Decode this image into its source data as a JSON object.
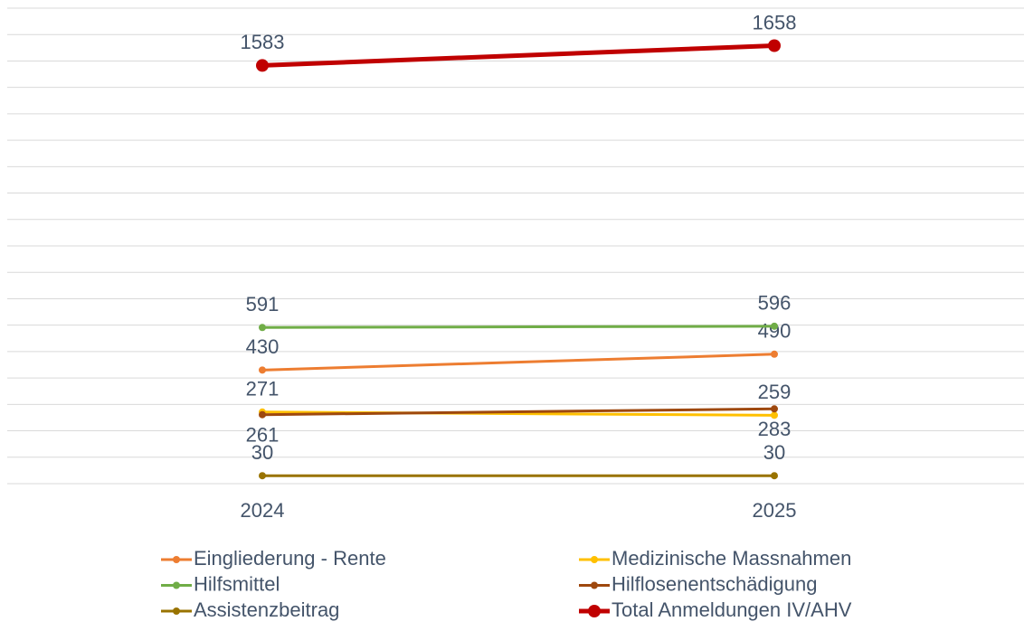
{
  "chart_data": {
    "type": "line",
    "categories": [
      "2024",
      "2025"
    ],
    "series": [
      {
        "name": "Eingliederung - Rente",
        "color": "#ED7D31",
        "values": [
          430,
          490
        ]
      },
      {
        "name": "Medizinische Massnahmen",
        "color": "#FFC000",
        "values": [
          271,
          259
        ]
      },
      {
        "name": "Hilfsmittel",
        "color": "#70AD47",
        "values": [
          591,
          596
        ]
      },
      {
        "name": "Hilflosenentschädigung",
        "color": "#9E480E",
        "values": [
          261,
          283
        ]
      },
      {
        "name": "Assistenzbeitrag",
        "color": "#997300",
        "values": [
          30,
          30
        ]
      },
      {
        "name": "Total Anmeldungen IV/AHV",
        "color": "#C00000",
        "values": [
          1583,
          1658
        ]
      }
    ],
    "ylim": [
      0,
      1800
    ],
    "yticks": [
      0,
      100,
      200,
      300,
      400,
      500,
      600,
      700,
      800,
      900,
      1000,
      1100,
      1200,
      1300,
      1400,
      1500,
      1600,
      1700,
      1800
    ],
    "grid": true,
    "legend": "bottom"
  }
}
